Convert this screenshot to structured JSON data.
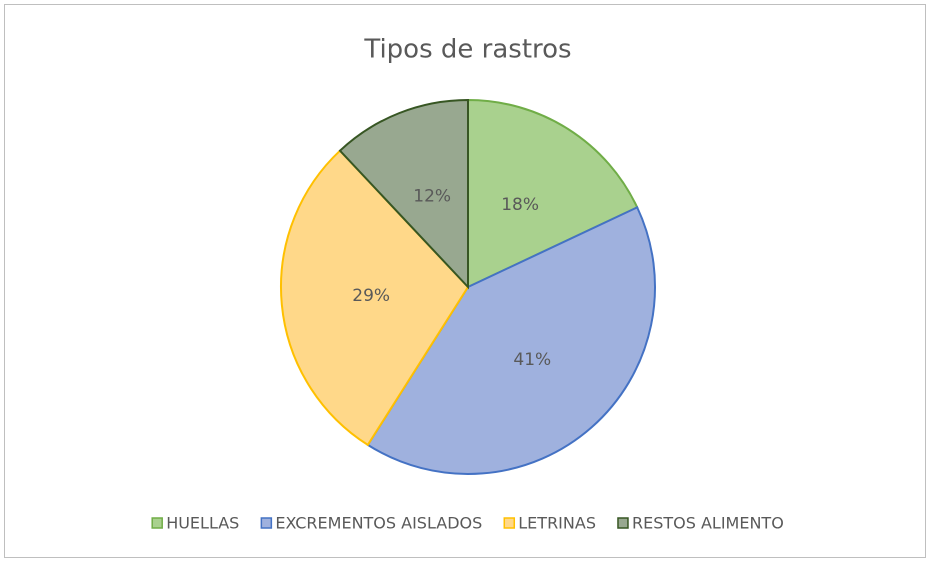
{
  "chart_data": {
    "type": "pie",
    "title": "Tipos de rastros",
    "categories": [
      "HUELLAS",
      "EXCREMENTOS AISLADOS",
      "LETRINAS",
      "RESTOS ALIMENTO"
    ],
    "values": [
      18,
      41,
      29,
      12
    ],
    "value_labels": [
      "18%",
      "41%",
      "29%",
      "12%"
    ],
    "colors": [
      "#a9d18e",
      "#9fb1de",
      "#ffd889",
      "#98a890"
    ],
    "edge_colors": [
      "#70ad47",
      "#4472c4",
      "#ffc000",
      "#375623"
    ],
    "legend": "bottom"
  }
}
